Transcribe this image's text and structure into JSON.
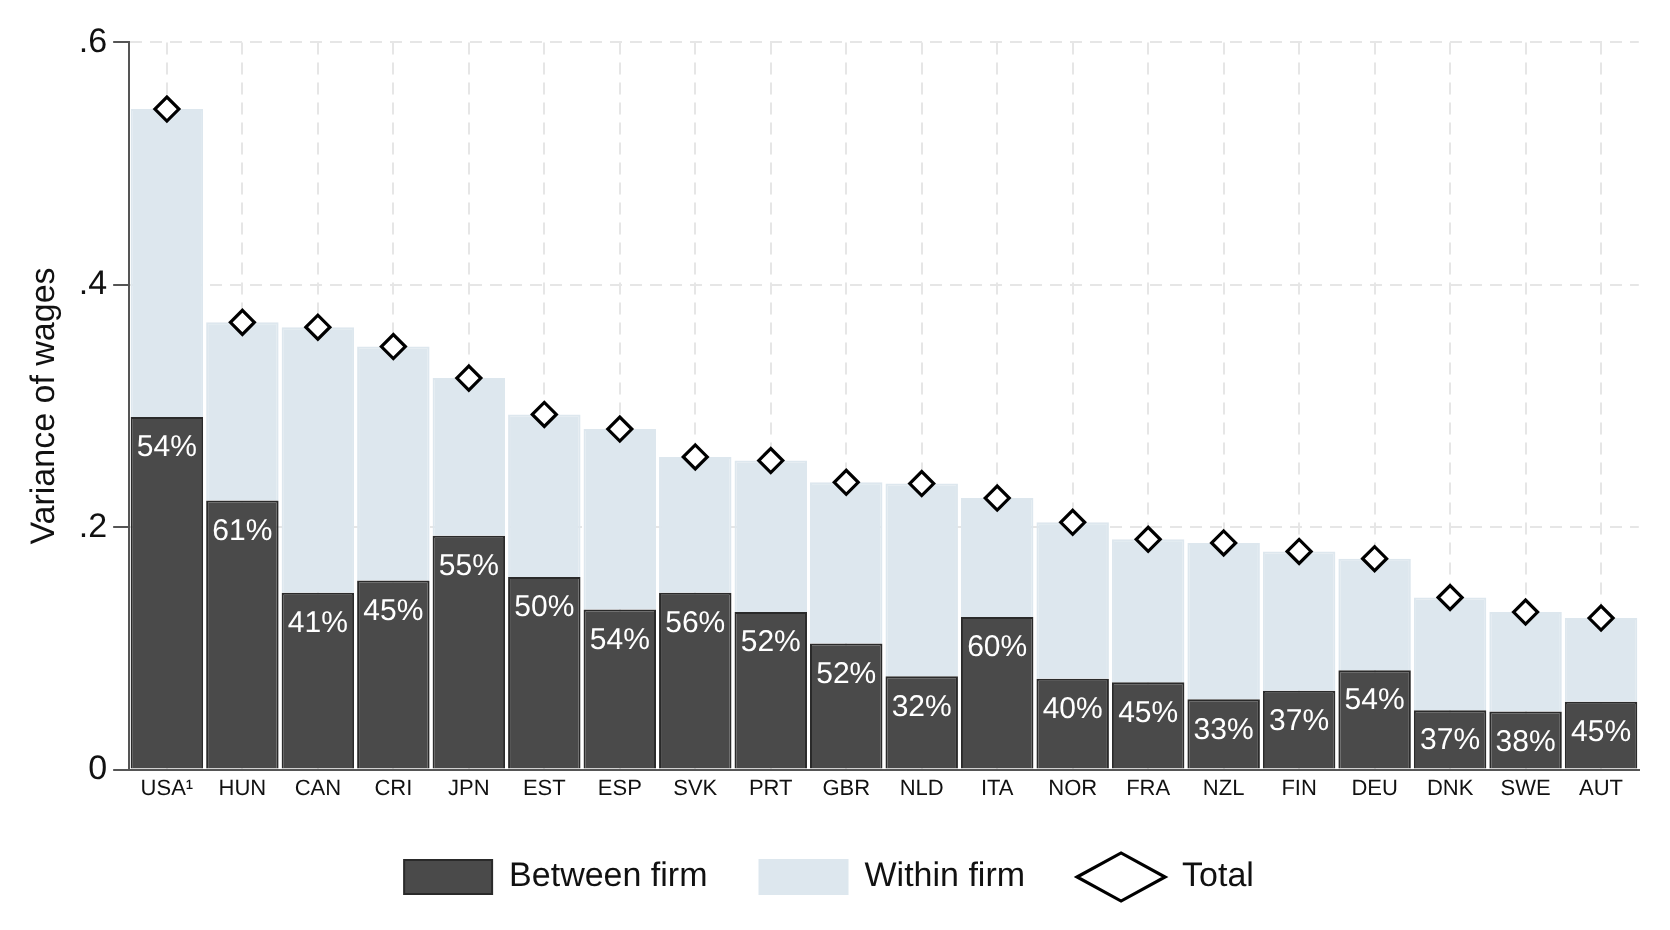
{
  "chart_data": {
    "type": "bar",
    "ylabel": "Variance of wages",
    "categories": [
      "USA¹",
      "HUN",
      "CAN",
      "CRI",
      "JPN",
      "EST",
      "ESP",
      "SVK",
      "PRT",
      "GBR",
      "NLD",
      "ITA",
      "NOR",
      "FRA",
      "NZL",
      "FIN",
      "DEU",
      "DNK",
      "SWE",
      "AUT"
    ],
    "stacked": true,
    "series": [
      {
        "name": "Between firm",
        "color": "#4a4a4a",
        "values": [
          0.291,
          0.222,
          0.146,
          0.156,
          0.193,
          0.159,
          0.132,
          0.146,
          0.13,
          0.104,
          0.077,
          0.126,
          0.075,
          0.072,
          0.058,
          0.065,
          0.082,
          0.049,
          0.048,
          0.056
        ]
      },
      {
        "name": "Within firm",
        "color": "#dde7ee",
        "values": [
          0.254,
          0.147,
          0.219,
          0.193,
          0.13,
          0.134,
          0.149,
          0.112,
          0.125,
          0.133,
          0.159,
          0.098,
          0.129,
          0.118,
          0.129,
          0.115,
          0.092,
          0.093,
          0.082,
          0.069
        ]
      },
      {
        "name": "Total",
        "type": "scatter",
        "marker": "diamond",
        "color": "#000000",
        "x": [
          "USA¹",
          "HUN",
          "CAN",
          "CRI",
          "JPN",
          "EST",
          "ESP",
          "SVK",
          "PRT",
          "GBR",
          "NLD",
          "ITA",
          "NOR",
          "FRA",
          "NZL",
          "FIN",
          "DEU",
          "DNK",
          "SWE",
          "AUT"
        ],
        "values": [
          0.545,
          0.369,
          0.365,
          0.349,
          0.323,
          0.293,
          0.281,
          0.258,
          0.255,
          0.237,
          0.236,
          0.224,
          0.204,
          0.19,
          0.187,
          0.18,
          0.174,
          0.142,
          0.13,
          0.125
        ]
      }
    ],
    "ylim": [
      0,
      0.6
    ],
    "yticks": [
      {
        "value": 0,
        "label": "0"
      },
      {
        "value": 0.2,
        "label": ".2"
      },
      {
        "value": 0.4,
        "label": ".4"
      },
      {
        "value": 0.6,
        "label": ".6"
      }
    ],
    "annotations": [
      {
        "text": "54%",
        "x": "USA¹",
        "y": 0.291
      },
      {
        "text": "61%",
        "x": "HUN",
        "y": 0.222
      },
      {
        "text": "41%",
        "x": "CAN",
        "y": 0.146
      },
      {
        "text": "45%",
        "x": "CRI",
        "y": 0.156
      },
      {
        "text": "55%",
        "x": "JPN",
        "y": 0.193
      },
      {
        "text": "50%",
        "x": "EST",
        "y": 0.159
      },
      {
        "text": "54%",
        "x": "ESP",
        "y": 0.132
      },
      {
        "text": "56%",
        "x": "SVK",
        "y": 0.146
      },
      {
        "text": "52%",
        "x": "PRT",
        "y": 0.13
      },
      {
        "text": "52%",
        "x": "GBR",
        "y": 0.104
      },
      {
        "text": "32%",
        "x": "NLD",
        "y": 0.077
      },
      {
        "text": "60%",
        "x": "ITA",
        "y": 0.126
      },
      {
        "text": "40%",
        "x": "NOR",
        "y": 0.075
      },
      {
        "text": "45%",
        "x": "FRA",
        "y": 0.072
      },
      {
        "text": "33%",
        "x": "NZL",
        "y": 0.058
      },
      {
        "text": "37%",
        "x": "FIN",
        "y": 0.065
      },
      {
        "text": "54%",
        "x": "DEU",
        "y": 0.082
      },
      {
        "text": "37%",
        "x": "DNK",
        "y": 0.049
      },
      {
        "text": "38%",
        "x": "SWE",
        "y": 0.048
      },
      {
        "text": "45%",
        "x": "AUT",
        "y": 0.056
      }
    ],
    "grid": true,
    "legend": "bottom"
  }
}
